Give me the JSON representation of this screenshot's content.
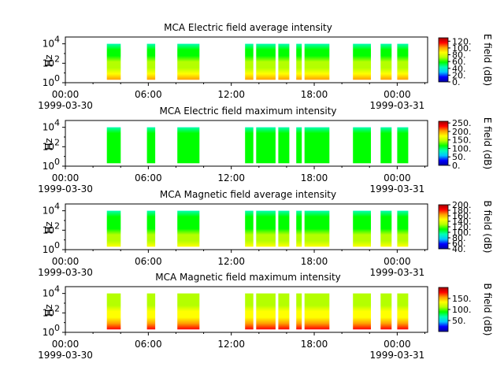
{
  "colors": {
    "colormap": [
      "#0000a0",
      "#0000ff",
      "#00c8ff",
      "#00ffb4",
      "#00ff00",
      "#b4ff00",
      "#ffff00",
      "#ffa000",
      "#ff0000",
      "#a00000"
    ]
  },
  "x_axis": {
    "ticks": [
      {
        "time": "00:00",
        "date": "1999-03-30"
      },
      {
        "time": "06:00",
        "date": ""
      },
      {
        "time": "12:00",
        "date": ""
      },
      {
        "time": "18:00",
        "date": ""
      },
      {
        "time": "00:00",
        "date": "1999-03-31"
      }
    ],
    "range_hours": [
      0,
      26.2
    ]
  },
  "chart_data": [
    {
      "type": "heatmap",
      "title": "MCA  Electric field average intensity",
      "ylabel": "Hz",
      "ylim_log10": [
        0,
        4.7
      ],
      "y_ticks": [
        {
          "base": "10",
          "exp": "0"
        },
        {
          "base": "10",
          "exp": "2"
        },
        {
          "base": "10",
          "exp": "4"
        }
      ],
      "colorbar": {
        "label": "E field (dB)",
        "range": [
          0,
          130
        ],
        "ticks": [
          "0.",
          "20.",
          "40.",
          "60.",
          "80.",
          "100.",
          "120."
        ],
        "tick_values": [
          0,
          20,
          40,
          60,
          80,
          100,
          120
        ]
      },
      "segments_hours": [
        [
          3.0,
          4.0
        ],
        [
          5.9,
          6.5
        ],
        [
          8.1,
          9.7
        ],
        [
          13.0,
          13.6
        ],
        [
          13.8,
          15.2
        ],
        [
          15.4,
          16.2
        ],
        [
          16.7,
          17.1
        ],
        [
          17.3,
          19.1
        ],
        [
          20.8,
          22.1
        ],
        [
          22.8,
          23.6
        ],
        [
          24.0,
          24.8
        ]
      ],
      "hz_log10_range": [
        0.3,
        4.0
      ],
      "level_low_freq": 100,
      "level_high_freq": 50
    },
    {
      "type": "heatmap",
      "title": "MCA  Electric field maximum intensity",
      "ylabel": "Hz",
      "ylim_log10": [
        0,
        4.7
      ],
      "y_ticks": [
        {
          "base": "10",
          "exp": "0"
        },
        {
          "base": "10",
          "exp": "2"
        },
        {
          "base": "10",
          "exp": "4"
        }
      ],
      "colorbar": {
        "label": "E field (dB)",
        "range": [
          0,
          260
        ],
        "ticks": [
          "0.",
          "50.",
          "100.",
          "150.",
          "200.",
          "250."
        ],
        "tick_values": [
          0,
          50,
          100,
          150,
          200,
          250
        ]
      },
      "segments_hours": [
        [
          3.0,
          4.0
        ],
        [
          5.9,
          6.5
        ],
        [
          8.1,
          9.7
        ],
        [
          13.0,
          13.6
        ],
        [
          13.8,
          15.2
        ],
        [
          15.4,
          16.2
        ],
        [
          16.7,
          17.1
        ],
        [
          17.3,
          19.1
        ],
        [
          20.8,
          22.1
        ],
        [
          22.8,
          23.6
        ],
        [
          24.0,
          24.8
        ]
      ],
      "hz_log10_range": [
        0.3,
        4.0
      ],
      "level_low_freq": 120,
      "level_high_freq": 100
    },
    {
      "type": "heatmap",
      "title": "MCA  Magnetic field average intensity",
      "ylabel": "Hz",
      "ylim_log10": [
        0,
        4.7
      ],
      "y_ticks": [
        {
          "base": "10",
          "exp": "0"
        },
        {
          "base": "10",
          "exp": "2"
        },
        {
          "base": "10",
          "exp": "4"
        }
      ],
      "colorbar": {
        "label": "B field (dB)",
        "range": [
          40,
          200
        ],
        "ticks": [
          "40.",
          "60.",
          "80.",
          "100.",
          "120.",
          "140.",
          "160.",
          "180.",
          "200."
        ],
        "tick_values": [
          40,
          60,
          80,
          100,
          120,
          140,
          160,
          180,
          200
        ]
      },
      "segments_hours": [
        [
          3.0,
          4.0
        ],
        [
          5.9,
          6.5
        ],
        [
          8.1,
          9.7
        ],
        [
          13.0,
          13.6
        ],
        [
          13.8,
          15.2
        ],
        [
          15.4,
          16.2
        ],
        [
          16.7,
          17.1
        ],
        [
          17.3,
          19.1
        ],
        [
          20.8,
          22.1
        ],
        [
          22.8,
          23.6
        ],
        [
          24.0,
          24.8
        ]
      ],
      "hz_log10_range": [
        0.3,
        4.0
      ],
      "level_low_freq": 150,
      "level_high_freq": 100
    },
    {
      "type": "heatmap",
      "title": "MCA  Magnetic field maximum intensity",
      "ylabel": "Hz",
      "ylim_log10": [
        0,
        4.7
      ],
      "y_ticks": [
        {
          "base": "10",
          "exp": "0"
        },
        {
          "base": "10",
          "exp": "2"
        },
        {
          "base": "10",
          "exp": "4"
        }
      ],
      "colorbar": {
        "label": "B field (dB)",
        "range": [
          0,
          200
        ],
        "ticks": [
          "50.",
          "100.",
          "150."
        ],
        "tick_values": [
          50,
          100,
          150
        ]
      },
      "segments_hours": [
        [
          3.0,
          4.0
        ],
        [
          5.9,
          6.5
        ],
        [
          8.1,
          9.7
        ],
        [
          13.0,
          13.6
        ],
        [
          13.8,
          15.2
        ],
        [
          15.4,
          16.2
        ],
        [
          16.7,
          17.1
        ],
        [
          17.3,
          19.1
        ],
        [
          20.8,
          22.1
        ],
        [
          22.8,
          23.6
        ],
        [
          24.0,
          24.8
        ]
      ],
      "hz_log10_range": [
        0.3,
        4.0
      ],
      "level_low_freq": 170,
      "level_high_freq": 110
    }
  ]
}
